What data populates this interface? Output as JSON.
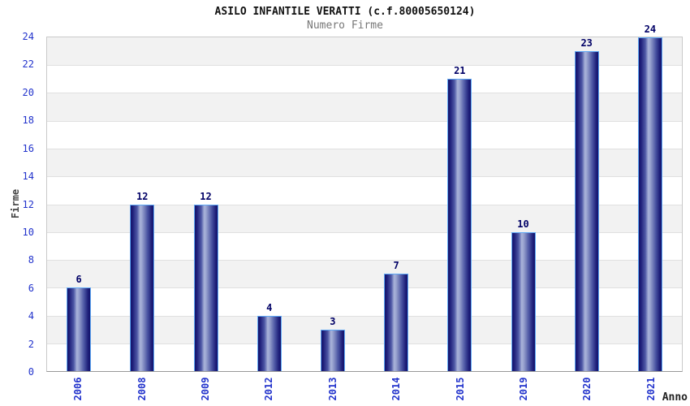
{
  "chart_data": {
    "type": "bar",
    "title": "ASILO INFANTILE VERATTI (c.f.80005650124)",
    "subtitle": "Numero Firme",
    "xlabel": "Anno",
    "ylabel": "Firme",
    "categories": [
      "2006",
      "2008",
      "2009",
      "2012",
      "2013",
      "2014",
      "2015",
      "2019",
      "2020",
      "2021"
    ],
    "values": [
      6,
      12,
      12,
      4,
      3,
      7,
      21,
      10,
      23,
      24
    ],
    "ylim": [
      0,
      24
    ],
    "ytick_step": 2,
    "grid": "horizontal alternating bands every 2 units, gray band at top",
    "legend_position": "none",
    "bar_value_labels": true,
    "xtick_rotation": -90
  },
  "style": {
    "tick_blue": "#2233cc",
    "value_label_navy": "#000066",
    "bar_border_blue": "#5fa8f5",
    "bar_dark_navy": "#14146b",
    "bar_highlight": "#aab4da",
    "band_gray": "#f2f2f2",
    "band_white": "#ffffff",
    "grid_line": "#e0e0e0",
    "plot_border": "#c9c9c9",
    "axis_line": "#999999",
    "title_color": "#111111",
    "subtitle_color": "#777777",
    "axis_title_color": "#444444",
    "background": "#ffffff"
  }
}
